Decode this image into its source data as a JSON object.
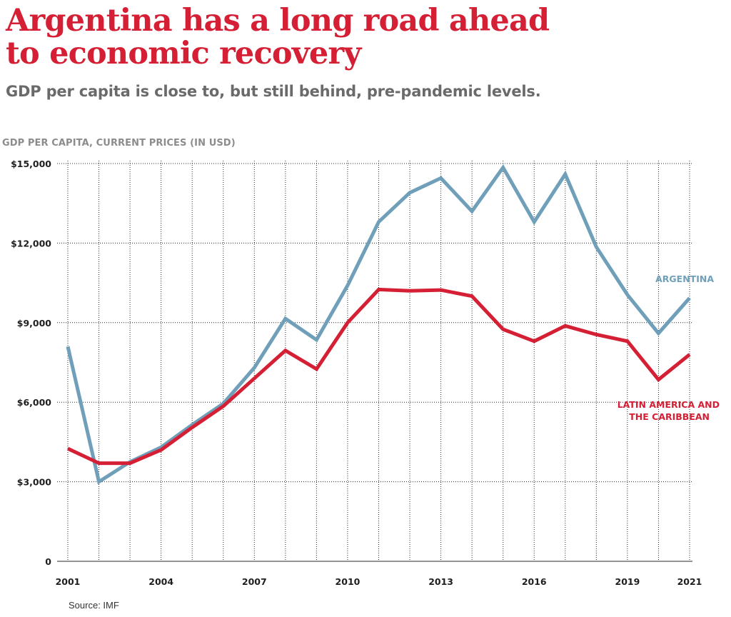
{
  "header": {
    "title_line1": "Argentina has a long road ahead",
    "title_line2": "to economic recovery",
    "subtitle": "GDP per capita is close to, but still behind, pre-pandemic levels."
  },
  "footer": {
    "source": "Source: IMF"
  },
  "colors": {
    "argentina": "#6f9fb9",
    "latin_america": "#d51f34"
  },
  "chart_data": {
    "type": "line",
    "title": "Argentina has a long road ahead to economic recovery",
    "subtitle": "GDP per capita is close to, but still behind, pre-pandemic levels.",
    "ylabel": "GDP PER CAPITA, CURRENT PRICES (IN USD)",
    "xlabel": "",
    "x": [
      2001,
      2002,
      2003,
      2004,
      2005,
      2006,
      2007,
      2008,
      2009,
      2010,
      2011,
      2012,
      2013,
      2014,
      2015,
      2016,
      2017,
      2018,
      2019,
      2020,
      2021
    ],
    "ylim": [
      0,
      15000
    ],
    "y_ticks": [
      0,
      3000,
      6000,
      9000,
      12000,
      15000
    ],
    "y_tick_labels": [
      "0",
      "$3,000",
      "$6,000",
      "$9,000",
      "$12,000",
      "$15,000"
    ],
    "x_ticks": [
      2001,
      2004,
      2007,
      2010,
      2013,
      2016,
      2019,
      2021
    ],
    "x_tick_labels": [
      "2001",
      "2004",
      "2007",
      "2010",
      "2013",
      "2016",
      "2019",
      "2021"
    ],
    "grid": true,
    "series": [
      {
        "name": "ARGENTINA",
        "color": "#6f9fb9",
        "values": [
          8100,
          3000,
          3750,
          4300,
          5150,
          5950,
          7300,
          9150,
          8350,
          10400,
          12800,
          13900,
          14450,
          13200,
          14850,
          12800,
          14600,
          11850,
          10050,
          8600,
          9930
        ]
      },
      {
        "name": "LATIN AMERICA AND THE CARIBBEAN",
        "label_lines": [
          "LATIN AMERICA AND",
          "THE CARIBBEAN"
        ],
        "color": "#d51f34",
        "values": [
          4250,
          3700,
          3700,
          4200,
          5050,
          5850,
          6900,
          7950,
          7250,
          9000,
          10250,
          10200,
          10230,
          10000,
          8750,
          8300,
          8880,
          8550,
          8300,
          6850,
          7800
        ]
      }
    ]
  }
}
